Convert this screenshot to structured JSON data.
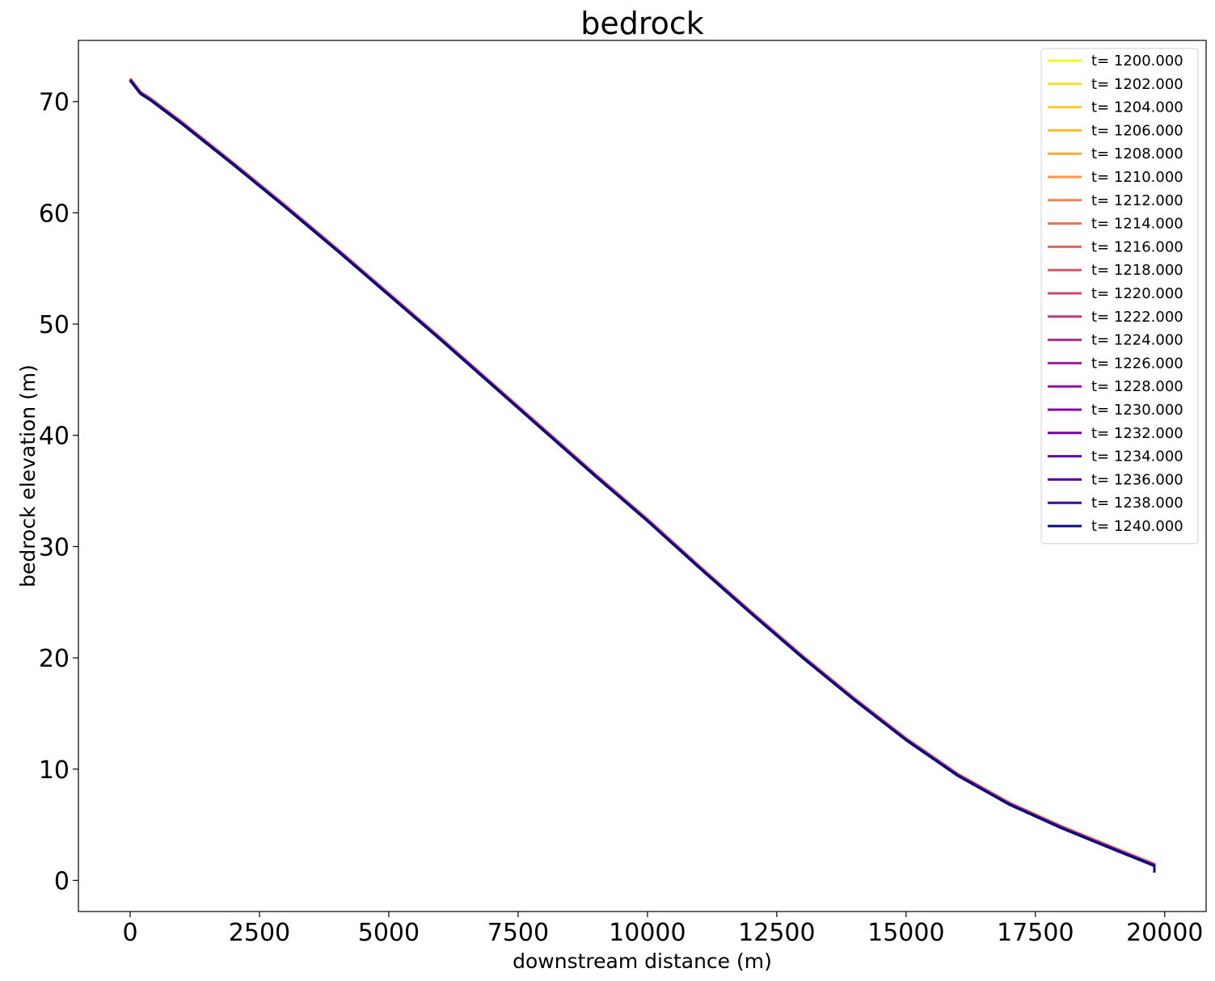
{
  "chart_data": {
    "type": "line",
    "title": "bedrock",
    "xlabel": "downstream distance (m)",
    "ylabel": "bedrock elevation (m)",
    "xlim": [
      -1000,
      20800
    ],
    "ylim": [
      -2.8,
      75.5
    ],
    "xticks": [
      0,
      2500,
      5000,
      7500,
      10000,
      12500,
      15000,
      17500,
      20000
    ],
    "yticks": [
      0,
      10,
      20,
      30,
      40,
      50,
      60,
      70
    ],
    "grid": false,
    "legend_position": "top-right",
    "profile": {
      "x": [
        0,
        200,
        400,
        1000,
        2000,
        3000,
        4000,
        5000,
        6000,
        7000,
        8000,
        9000,
        10000,
        11000,
        12000,
        13000,
        14000,
        15000,
        16000,
        17000,
        18000,
        19000,
        19800,
        19800
      ],
      "y": [
        71.9,
        70.7,
        70.1,
        68.0,
        64.3,
        60.5,
        56.6,
        52.6,
        48.6,
        44.5,
        40.4,
        36.3,
        32.3,
        28.1,
        24.0,
        20.0,
        16.2,
        12.6,
        9.4,
        6.8,
        4.7,
        2.8,
        1.3,
        0.7
      ]
    },
    "series": [
      {
        "name": "t= 1200.000",
        "color": "#f0f921",
        "offset": 0.2
      },
      {
        "name": "t= 1202.000",
        "color": "#f7e225",
        "offset": 0.19
      },
      {
        "name": "t= 1204.000",
        "color": "#fcce25",
        "offset": 0.18
      },
      {
        "name": "t= 1206.000",
        "color": "#fdba2b",
        "offset": 0.17
      },
      {
        "name": "t= 1208.000",
        "color": "#fba836",
        "offset": 0.16
      },
      {
        "name": "t= 1210.000",
        "color": "#f89540",
        "offset": 0.15
      },
      {
        "name": "t= 1212.000",
        "color": "#f1834c",
        "offset": 0.14
      },
      {
        "name": "t= 1214.000",
        "color": "#e97158",
        "offset": 0.13
      },
      {
        "name": "t= 1216.000",
        "color": "#e16462",
        "offset": 0.12
      },
      {
        "name": "t= 1218.000",
        "color": "#d5546e",
        "offset": 0.11
      },
      {
        "name": "t= 1220.000",
        "color": "#cc4778",
        "offset": 0.1
      },
      {
        "name": "t= 1222.000",
        "color": "#bf3984",
        "offset": 0.09
      },
      {
        "name": "t= 1224.000",
        "color": "#b12a90",
        "offset": 0.08
      },
      {
        "name": "t= 1226.000",
        "color": "#a21d9a",
        "offset": 0.07
      },
      {
        "name": "t= 1228.000",
        "color": "#9511a1",
        "offset": 0.06
      },
      {
        "name": "t= 1230.000",
        "color": "#8606a6",
        "offset": 0.05
      },
      {
        "name": "t= 1232.000",
        "color": "#7601a8",
        "offset": 0.04
      },
      {
        "name": "t= 1234.000",
        "color": "#6600a7",
        "offset": 0.03
      },
      {
        "name": "t= 1236.000",
        "color": "#5402a3",
        "offset": 0.02
      },
      {
        "name": "t= 1238.000",
        "color": "#3e049c",
        "offset": 0.01
      },
      {
        "name": "t= 1240.000",
        "color": "#0d0887",
        "offset": 0.0
      }
    ]
  }
}
